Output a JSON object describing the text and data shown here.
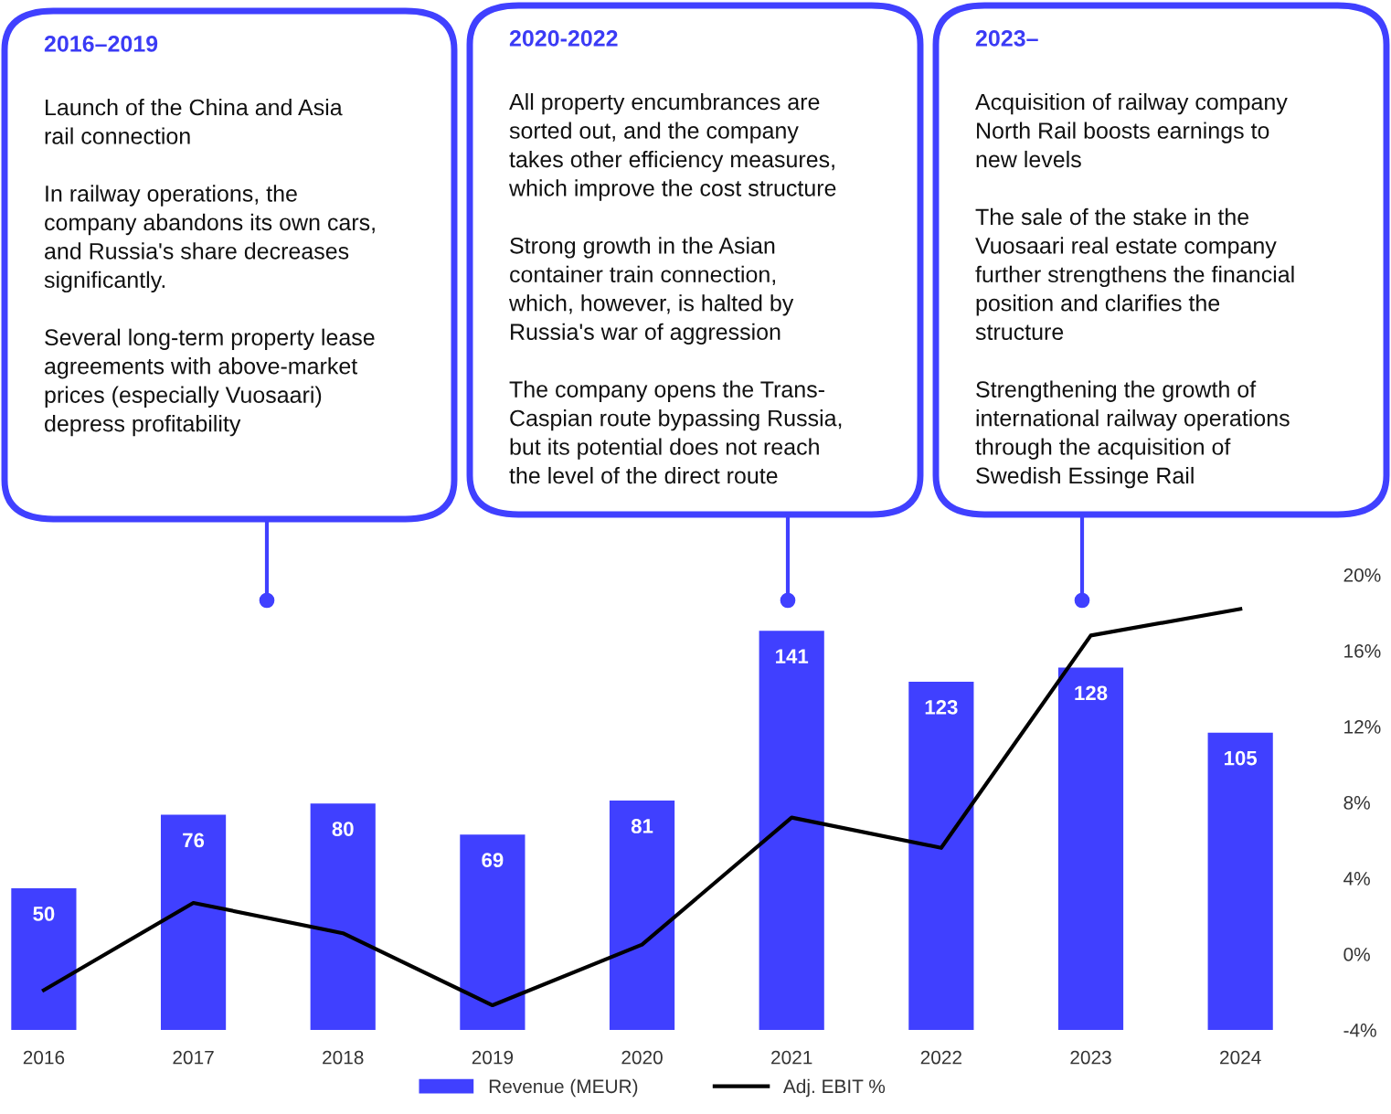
{
  "chart_data": {
    "type": "bar",
    "categories": [
      "2016",
      "2017",
      "2018",
      "2019",
      "2020",
      "2021",
      "2022",
      "2023",
      "2024"
    ],
    "series": [
      {
        "name": "Revenue (MEUR)",
        "color": "#4040ff",
        "values": [
          50,
          76,
          80,
          69,
          81,
          141,
          123,
          128,
          105
        ],
        "value_labels": [
          "50",
          "76",
          "80",
          "69",
          "81",
          "141",
          "123",
          "128",
          "105"
        ]
      },
      {
        "name": "Adj. EBIT %",
        "type": "line",
        "axis": "y2",
        "color": "#000000",
        "values": [
          -1.9,
          2.7,
          1.1,
          -2.7,
          0.5,
          7.2,
          5.6,
          16.8,
          18.2
        ]
      }
    ],
    "y2lim": [
      -4,
      20
    ],
    "y2ticks": [
      {
        "value": -4,
        "label": "-4%"
      },
      {
        "value": 0,
        "label": "0%"
      },
      {
        "value": 4,
        "label": "4%"
      },
      {
        "value": 8,
        "label": "8%"
      },
      {
        "value": 12,
        "label": "12%"
      },
      {
        "value": 16,
        "label": "16%"
      },
      {
        "value": 20,
        "label": "20%"
      }
    ],
    "legend": "bottom",
    "marker": "none",
    "line_style": "solid",
    "annotations": [
      "2016–2019",
      "Launch of the China and Asia\nrail connection\n\nIn railway operations, the\ncompany abandons its own cars,\nand Russia's share decreases\nsignificantly.\n\nSeveral long-term property lease\nagreements with above-market\nprices (especially Vuosaari)\ndepress profitability",
      "2020-2022",
      "All property encumbrances are\nsorted out, and the company\ntakes other efficiency measures,\nwhich improve the cost structure\n\nStrong growth in the Asian\ncontainer train connection,\nwhich, however, is halted by\nRussia's war of aggression\n\nThe company opens the Trans-\nCaspian route bypassing Russia,\nbut its potential does not reach\nthe level of the direct route",
      "2023–",
      "Acquisition of railway company\nNorth Rail boosts earnings to\nnew levels\n\nThe sale of the stake in the\nVuosaari real estate company\nfurther strengthens the financial\nposition and clarifies the\nstructure\n\nStrengthening the growth of\ninternational railway operations\nthrough the acquisition of\nSwedish Essinge Rail"
    ]
  }
}
